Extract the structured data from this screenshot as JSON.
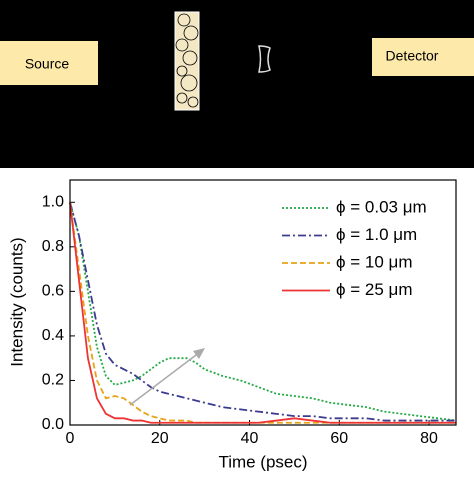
{
  "diagram": {
    "source_label": "Source",
    "detector_label": "Detector"
  },
  "chart_data": {
    "type": "line",
    "xlabel": "Time (psec)",
    "ylabel": "Intensity (counts)",
    "x": [
      0,
      2,
      4,
      6,
      8,
      10,
      12,
      14,
      16,
      18,
      20,
      22,
      24,
      26,
      28,
      30,
      34,
      38,
      42,
      46,
      50,
      54,
      58,
      62,
      66,
      70,
      74,
      78,
      82,
      86
    ],
    "series": [
      {
        "name": "ϕ = 0.03 μm",
        "color": "#22aa44",
        "style": "dotted",
        "values": [
          1.0,
          0.85,
          0.6,
          0.35,
          0.22,
          0.18,
          0.19,
          0.2,
          0.22,
          0.25,
          0.28,
          0.3,
          0.3,
          0.3,
          0.28,
          0.25,
          0.22,
          0.2,
          0.17,
          0.14,
          0.13,
          0.12,
          0.1,
          0.09,
          0.08,
          0.06,
          0.05,
          0.04,
          0.03,
          0.02
        ]
      },
      {
        "name": "ϕ = 1.0 μm",
        "color": "#3b3b8f",
        "style": "dashdot",
        "values": [
          1.0,
          0.85,
          0.65,
          0.45,
          0.32,
          0.27,
          0.25,
          0.23,
          0.2,
          0.17,
          0.15,
          0.14,
          0.13,
          0.12,
          0.11,
          0.1,
          0.08,
          0.07,
          0.06,
          0.05,
          0.04,
          0.04,
          0.03,
          0.03,
          0.03,
          0.02,
          0.02,
          0.02,
          0.02,
          0.02
        ]
      },
      {
        "name": "ϕ = 10 μm",
        "color": "#e8a317",
        "style": "dashed",
        "values": [
          1.0,
          0.7,
          0.4,
          0.2,
          0.12,
          0.13,
          0.12,
          0.09,
          0.06,
          0.04,
          0.03,
          0.02,
          0.02,
          0.02,
          0.01,
          0.01,
          0.01,
          0.01,
          0.01,
          0.01,
          0.01,
          0.01,
          0.01,
          0.01,
          0.01,
          0.01,
          0.01,
          0.01,
          0.01,
          0.01
        ]
      },
      {
        "name": "ϕ = 25 μm",
        "color": "#ee3333",
        "style": "solid",
        "values": [
          1.0,
          0.65,
          0.3,
          0.12,
          0.05,
          0.03,
          0.03,
          0.02,
          0.02,
          0.01,
          0.01,
          0.01,
          0.01,
          0.01,
          0.01,
          0.01,
          0.01,
          0.01,
          0.01,
          0.02,
          0.03,
          0.02,
          0.01,
          0.01,
          0.01,
          0.01,
          0.01,
          0.01,
          0.01,
          0.01
        ]
      }
    ],
    "xlim": [
      0,
      86
    ],
    "ylim": [
      0,
      1.1
    ],
    "xticks": [
      0,
      20,
      40,
      60,
      80
    ],
    "yticks": [
      {
        "value": 0,
        "label": "0.0"
      },
      0.2,
      0.4,
      0.6,
      0.8,
      {
        "value": 1,
        "label": "1.0"
      }
    ],
    "legend": "upper right"
  }
}
